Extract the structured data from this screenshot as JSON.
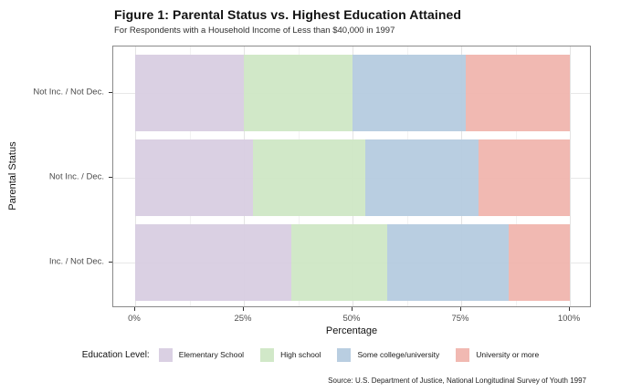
{
  "chart_data": {
    "type": "bar",
    "orientation": "horizontal-stacked",
    "title": "Figure 1: Parental Status vs. Highest Education Attained",
    "subtitle": "For Respondents with a Household Income of Less than $40,000 in 1997",
    "xlabel": "Percentage",
    "ylabel": "Parental Status",
    "categories": [
      "Not Inc. / Not Dec.",
      "Not Inc. / Dec.",
      "Inc. / Not Dec."
    ],
    "x_ticks": [
      {
        "label": "0%",
        "value": 0
      },
      {
        "label": "25%",
        "value": 25
      },
      {
        "label": "50%",
        "value": 50
      },
      {
        "label": "75%",
        "value": 75
      },
      {
        "label": "100%",
        "value": 100
      }
    ],
    "x_minor_ticks": [
      12.5,
      37.5,
      62.5,
      87.5
    ],
    "xlim": [
      0,
      100
    ],
    "grid": true,
    "legend_title": "Education Level:",
    "legend_position": "bottom",
    "series": [
      {
        "name": "Elementary School",
        "color": "#d8cde1",
        "values": [
          25,
          27,
          36
        ]
      },
      {
        "name": "High school",
        "color": "#cfe7c5",
        "values": [
          25,
          26,
          22
        ]
      },
      {
        "name": "Some college/university",
        "color": "#b5cbdf",
        "values": [
          26,
          26,
          28
        ]
      },
      {
        "name": "University or more",
        "color": "#f0b5ae",
        "values": [
          24,
          21,
          14
        ]
      }
    ],
    "source": "Source: U.S. Department of Justice, National Longitudinal Survey of Youth 1997",
    "panel_border_color": "#8a8a8a",
    "major_grid_color": "#e4e4e4",
    "minor_grid_color": "#f2f2f2"
  }
}
